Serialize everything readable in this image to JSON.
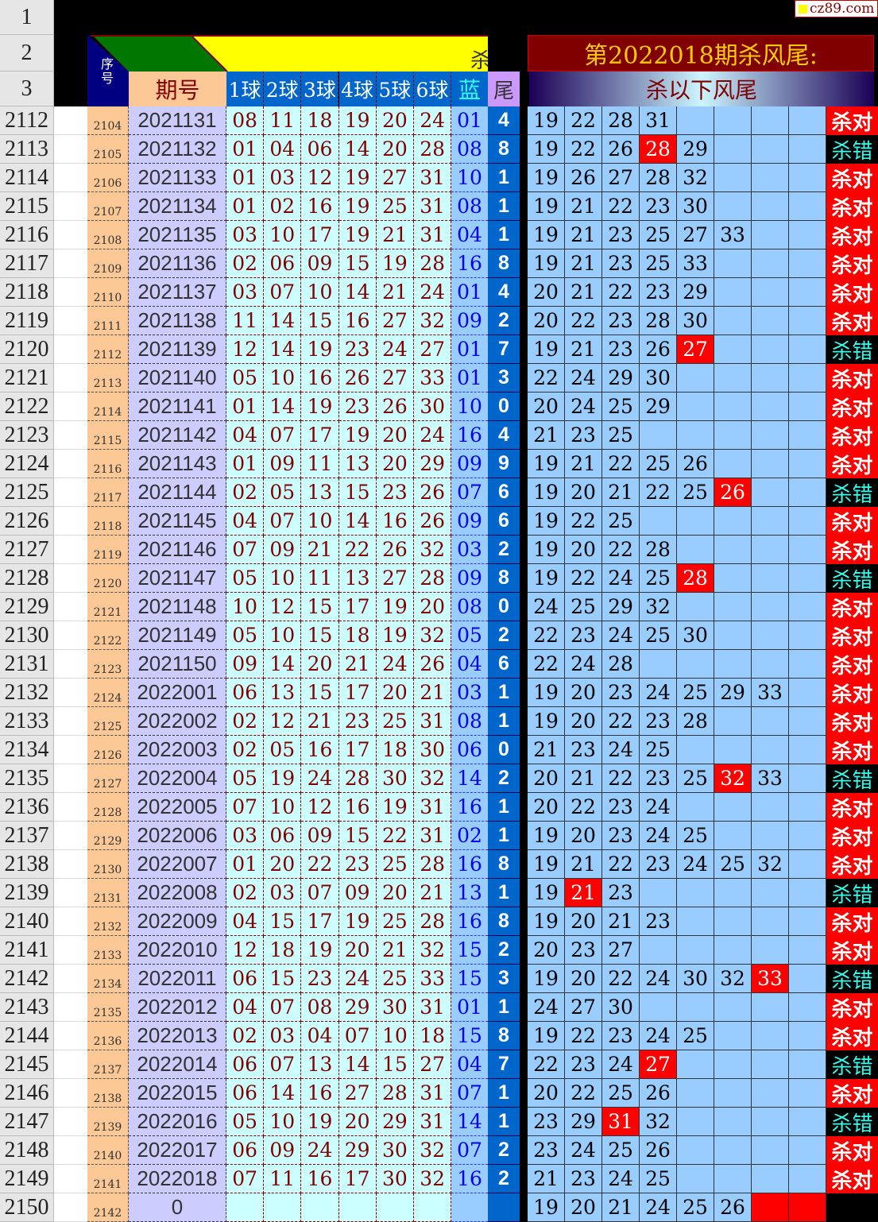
{
  "header": {
    "row_numbers": [
      "1",
      "2",
      "3"
    ],
    "watermark": "cz89.com",
    "seq_label": "序号",
    "period_label": "期号",
    "ball_labels": [
      "1球",
      "2球",
      "3球",
      "4球",
      "5球",
      "6球"
    ],
    "blue_label": "蓝",
    "tail_label": "尾",
    "kill_title": "第2022018期杀风尾:",
    "kill_subtitle": "杀以下风尾",
    "banner_glyph": "杀"
  },
  "colors": {
    "hit": "#ff0000",
    "ok_bg": "#ff0000",
    "bad_bg": "#000000",
    "bad_text": "#33ffee",
    "tail_bg": "#0066cc",
    "kill_bg": "#99ccff"
  },
  "rows": [
    {
      "r": "2112",
      "seq": "2104",
      "period": "2021131",
      "balls": [
        "08",
        "11",
        "18",
        "19",
        "20",
        "24"
      ],
      "blue": "01",
      "tail": "4",
      "kill": [
        "19",
        "22",
        "28",
        "31"
      ],
      "hit": -1,
      "result": "杀对"
    },
    {
      "r": "2113",
      "seq": "2105",
      "period": "2021132",
      "balls": [
        "01",
        "04",
        "06",
        "14",
        "20",
        "28"
      ],
      "blue": "08",
      "tail": "8",
      "kill": [
        "19",
        "22",
        "26",
        "28",
        "29"
      ],
      "hit": 3,
      "result": "杀错"
    },
    {
      "r": "2114",
      "seq": "2106",
      "period": "2021133",
      "balls": [
        "01",
        "03",
        "12",
        "19",
        "27",
        "31"
      ],
      "blue": "10",
      "tail": "1",
      "kill": [
        "19",
        "26",
        "27",
        "28",
        "32"
      ],
      "hit": -1,
      "result": "杀对"
    },
    {
      "r": "2115",
      "seq": "2107",
      "period": "2021134",
      "balls": [
        "01",
        "02",
        "16",
        "19",
        "25",
        "31"
      ],
      "blue": "08",
      "tail": "1",
      "kill": [
        "19",
        "21",
        "22",
        "23",
        "30"
      ],
      "hit": -1,
      "result": "杀对"
    },
    {
      "r": "2116",
      "seq": "2108",
      "period": "2021135",
      "balls": [
        "03",
        "10",
        "17",
        "19",
        "21",
        "31"
      ],
      "blue": "04",
      "tail": "1",
      "kill": [
        "19",
        "21",
        "23",
        "25",
        "27",
        "33"
      ],
      "hit": -1,
      "result": "杀对"
    },
    {
      "r": "2117",
      "seq": "2109",
      "period": "2021136",
      "balls": [
        "02",
        "06",
        "09",
        "15",
        "19",
        "28"
      ],
      "blue": "16",
      "tail": "8",
      "kill": [
        "19",
        "21",
        "23",
        "25",
        "33"
      ],
      "hit": -1,
      "result": "杀对"
    },
    {
      "r": "2118",
      "seq": "2110",
      "period": "2021137",
      "balls": [
        "03",
        "07",
        "10",
        "14",
        "21",
        "24"
      ],
      "blue": "01",
      "tail": "4",
      "kill": [
        "20",
        "21",
        "22",
        "23",
        "29"
      ],
      "hit": -1,
      "result": "杀对"
    },
    {
      "r": "2119",
      "seq": "2111",
      "period": "2021138",
      "balls": [
        "11",
        "14",
        "15",
        "16",
        "27",
        "32"
      ],
      "blue": "09",
      "tail": "2",
      "kill": [
        "20",
        "22",
        "23",
        "28",
        "30"
      ],
      "hit": -1,
      "result": "杀对"
    },
    {
      "r": "2120",
      "seq": "2112",
      "period": "2021139",
      "balls": [
        "12",
        "14",
        "19",
        "23",
        "24",
        "27"
      ],
      "blue": "01",
      "tail": "7",
      "kill": [
        "19",
        "21",
        "23",
        "26",
        "27"
      ],
      "hit": 4,
      "result": "杀错"
    },
    {
      "r": "2121",
      "seq": "2113",
      "period": "2021140",
      "balls": [
        "05",
        "10",
        "16",
        "26",
        "27",
        "33"
      ],
      "blue": "01",
      "tail": "3",
      "kill": [
        "22",
        "24",
        "29",
        "30"
      ],
      "hit": -1,
      "result": "杀对"
    },
    {
      "r": "2122",
      "seq": "2114",
      "period": "2021141",
      "balls": [
        "01",
        "14",
        "19",
        "23",
        "26",
        "30"
      ],
      "blue": "10",
      "tail": "0",
      "kill": [
        "20",
        "24",
        "25",
        "29"
      ],
      "hit": -1,
      "result": "杀对"
    },
    {
      "r": "2123",
      "seq": "2115",
      "period": "2021142",
      "balls": [
        "04",
        "07",
        "17",
        "19",
        "20",
        "24"
      ],
      "blue": "16",
      "tail": "4",
      "kill": [
        "21",
        "23",
        "25"
      ],
      "hit": -1,
      "result": "杀对"
    },
    {
      "r": "2124",
      "seq": "2116",
      "period": "2021143",
      "balls": [
        "01",
        "09",
        "11",
        "13",
        "20",
        "29"
      ],
      "blue": "09",
      "tail": "9",
      "kill": [
        "19",
        "21",
        "22",
        "25",
        "26"
      ],
      "hit": -1,
      "result": "杀对"
    },
    {
      "r": "2125",
      "seq": "2117",
      "period": "2021144",
      "balls": [
        "02",
        "05",
        "13",
        "15",
        "23",
        "26"
      ],
      "blue": "07",
      "tail": "6",
      "kill": [
        "19",
        "20",
        "21",
        "22",
        "25",
        "26"
      ],
      "hit": 5,
      "result": "杀错"
    },
    {
      "r": "2126",
      "seq": "2118",
      "period": "2021145",
      "balls": [
        "04",
        "07",
        "10",
        "14",
        "16",
        "26"
      ],
      "blue": "09",
      "tail": "6",
      "kill": [
        "19",
        "22",
        "25"
      ],
      "hit": -1,
      "result": "杀对"
    },
    {
      "r": "2127",
      "seq": "2119",
      "period": "2021146",
      "balls": [
        "07",
        "09",
        "21",
        "22",
        "26",
        "32"
      ],
      "blue": "03",
      "tail": "2",
      "kill": [
        "19",
        "20",
        "22",
        "28"
      ],
      "hit": -1,
      "result": "杀对"
    },
    {
      "r": "2128",
      "seq": "2120",
      "period": "2021147",
      "balls": [
        "05",
        "10",
        "11",
        "13",
        "27",
        "28"
      ],
      "blue": "09",
      "tail": "8",
      "kill": [
        "19",
        "22",
        "24",
        "25",
        "28"
      ],
      "hit": 4,
      "result": "杀错"
    },
    {
      "r": "2129",
      "seq": "2121",
      "period": "2021148",
      "balls": [
        "10",
        "12",
        "15",
        "17",
        "19",
        "20"
      ],
      "blue": "08",
      "tail": "0",
      "kill": [
        "24",
        "25",
        "29",
        "32"
      ],
      "hit": -1,
      "result": "杀对"
    },
    {
      "r": "2130",
      "seq": "2122",
      "period": "2021149",
      "balls": [
        "05",
        "10",
        "15",
        "18",
        "19",
        "32"
      ],
      "blue": "05",
      "tail": "2",
      "kill": [
        "22",
        "23",
        "24",
        "25",
        "30"
      ],
      "hit": -1,
      "result": "杀对"
    },
    {
      "r": "2131",
      "seq": "2123",
      "period": "2021150",
      "balls": [
        "09",
        "14",
        "20",
        "21",
        "24",
        "26"
      ],
      "blue": "04",
      "tail": "6",
      "kill": [
        "22",
        "24",
        "28"
      ],
      "hit": -1,
      "result": "杀对"
    },
    {
      "r": "2132",
      "seq": "2124",
      "period": "2022001",
      "balls": [
        "06",
        "13",
        "15",
        "17",
        "20",
        "21"
      ],
      "blue": "03",
      "tail": "1",
      "kill": [
        "19",
        "20",
        "23",
        "24",
        "25",
        "29",
        "33"
      ],
      "hit": -1,
      "result": "杀对"
    },
    {
      "r": "2133",
      "seq": "2125",
      "period": "2022002",
      "balls": [
        "02",
        "12",
        "21",
        "23",
        "25",
        "31"
      ],
      "blue": "08",
      "tail": "1",
      "kill": [
        "19",
        "20",
        "22",
        "23",
        "28"
      ],
      "hit": -1,
      "result": "杀对"
    },
    {
      "r": "2134",
      "seq": "2126",
      "period": "2022003",
      "balls": [
        "02",
        "05",
        "16",
        "17",
        "18",
        "30"
      ],
      "blue": "06",
      "tail": "0",
      "kill": [
        "21",
        "23",
        "24",
        "25"
      ],
      "hit": -1,
      "result": "杀对"
    },
    {
      "r": "2135",
      "seq": "2127",
      "period": "2022004",
      "balls": [
        "05",
        "19",
        "24",
        "28",
        "30",
        "32"
      ],
      "blue": "14",
      "tail": "2",
      "kill": [
        "20",
        "21",
        "22",
        "23",
        "25",
        "32",
        "33"
      ],
      "hit": 5,
      "result": "杀错"
    },
    {
      "r": "2136",
      "seq": "2128",
      "period": "2022005",
      "balls": [
        "07",
        "10",
        "12",
        "16",
        "19",
        "31"
      ],
      "blue": "16",
      "tail": "1",
      "kill": [
        "20",
        "22",
        "23",
        "24"
      ],
      "hit": -1,
      "result": "杀对"
    },
    {
      "r": "2137",
      "seq": "2129",
      "period": "2022006",
      "balls": [
        "03",
        "06",
        "09",
        "15",
        "22",
        "31"
      ],
      "blue": "02",
      "tail": "1",
      "kill": [
        "19",
        "20",
        "23",
        "24",
        "25"
      ],
      "hit": -1,
      "result": "杀对"
    },
    {
      "r": "2138",
      "seq": "2130",
      "period": "2022007",
      "balls": [
        "01",
        "20",
        "22",
        "23",
        "25",
        "28"
      ],
      "blue": "16",
      "tail": "8",
      "kill": [
        "19",
        "21",
        "22",
        "23",
        "24",
        "25",
        "32"
      ],
      "hit": -1,
      "result": "杀对"
    },
    {
      "r": "2139",
      "seq": "2131",
      "period": "2022008",
      "balls": [
        "02",
        "03",
        "07",
        "09",
        "20",
        "21"
      ],
      "blue": "13",
      "tail": "1",
      "kill": [
        "19",
        "21",
        "23"
      ],
      "hit": 1,
      "result": "杀错"
    },
    {
      "r": "2140",
      "seq": "2132",
      "period": "2022009",
      "balls": [
        "04",
        "15",
        "17",
        "19",
        "25",
        "28"
      ],
      "blue": "16",
      "tail": "8",
      "kill": [
        "19",
        "20",
        "21",
        "23"
      ],
      "hit": -1,
      "result": "杀对"
    },
    {
      "r": "2141",
      "seq": "2133",
      "period": "2022010",
      "balls": [
        "12",
        "18",
        "19",
        "20",
        "21",
        "32"
      ],
      "blue": "15",
      "tail": "2",
      "kill": [
        "20",
        "23",
        "27"
      ],
      "hit": -1,
      "result": "杀对"
    },
    {
      "r": "2142",
      "seq": "2134",
      "period": "2022011",
      "balls": [
        "06",
        "15",
        "23",
        "24",
        "25",
        "33"
      ],
      "blue": "15",
      "tail": "3",
      "kill": [
        "19",
        "20",
        "22",
        "24",
        "30",
        "32",
        "33"
      ],
      "hit": 6,
      "result": "杀错"
    },
    {
      "r": "2143",
      "seq": "2135",
      "period": "2022012",
      "balls": [
        "04",
        "07",
        "08",
        "29",
        "30",
        "31"
      ],
      "blue": "01",
      "tail": "1",
      "kill": [
        "24",
        "27",
        "30"
      ],
      "hit": -1,
      "result": "杀对"
    },
    {
      "r": "2144",
      "seq": "2136",
      "period": "2022013",
      "balls": [
        "02",
        "03",
        "04",
        "07",
        "10",
        "18"
      ],
      "blue": "15",
      "tail": "8",
      "kill": [
        "19",
        "22",
        "23",
        "24",
        "25"
      ],
      "hit": -1,
      "result": "杀对"
    },
    {
      "r": "2145",
      "seq": "2137",
      "period": "2022014",
      "balls": [
        "06",
        "07",
        "13",
        "14",
        "15",
        "27"
      ],
      "blue": "04",
      "tail": "7",
      "kill": [
        "22",
        "23",
        "24",
        "27"
      ],
      "hit": 3,
      "result": "杀错"
    },
    {
      "r": "2146",
      "seq": "2138",
      "period": "2022015",
      "balls": [
        "06",
        "14",
        "16",
        "27",
        "28",
        "31"
      ],
      "blue": "07",
      "tail": "1",
      "kill": [
        "20",
        "22",
        "25",
        "26"
      ],
      "hit": -1,
      "result": "杀对"
    },
    {
      "r": "2147",
      "seq": "2139",
      "period": "2022016",
      "balls": [
        "05",
        "10",
        "19",
        "20",
        "29",
        "31"
      ],
      "blue": "14",
      "tail": "1",
      "kill": [
        "23",
        "29",
        "31",
        "32"
      ],
      "hit": 2,
      "result": "杀错"
    },
    {
      "r": "2148",
      "seq": "2140",
      "period": "2022017",
      "balls": [
        "06",
        "09",
        "24",
        "29",
        "30",
        "32"
      ],
      "blue": "07",
      "tail": "2",
      "kill": [
        "23",
        "24",
        "25",
        "26"
      ],
      "hit": -1,
      "result": "杀对"
    },
    {
      "r": "2149",
      "seq": "2141",
      "period": "2022018",
      "balls": [
        "07",
        "11",
        "16",
        "17",
        "30",
        "32"
      ],
      "blue": "16",
      "tail": "2",
      "kill": [
        "21",
        "23",
        "24",
        "25"
      ],
      "hit": -1,
      "result": "杀对"
    },
    {
      "r": "2150",
      "seq": "2142",
      "period": "0",
      "balls": [
        "",
        "",
        "",
        "",
        "",
        ""
      ],
      "blue": "",
      "tail": "",
      "kill": [
        "19",
        "20",
        "21",
        "24",
        "25",
        "26"
      ],
      "hit": -1,
      "result": "",
      "red_cells": [
        6,
        7
      ]
    }
  ]
}
